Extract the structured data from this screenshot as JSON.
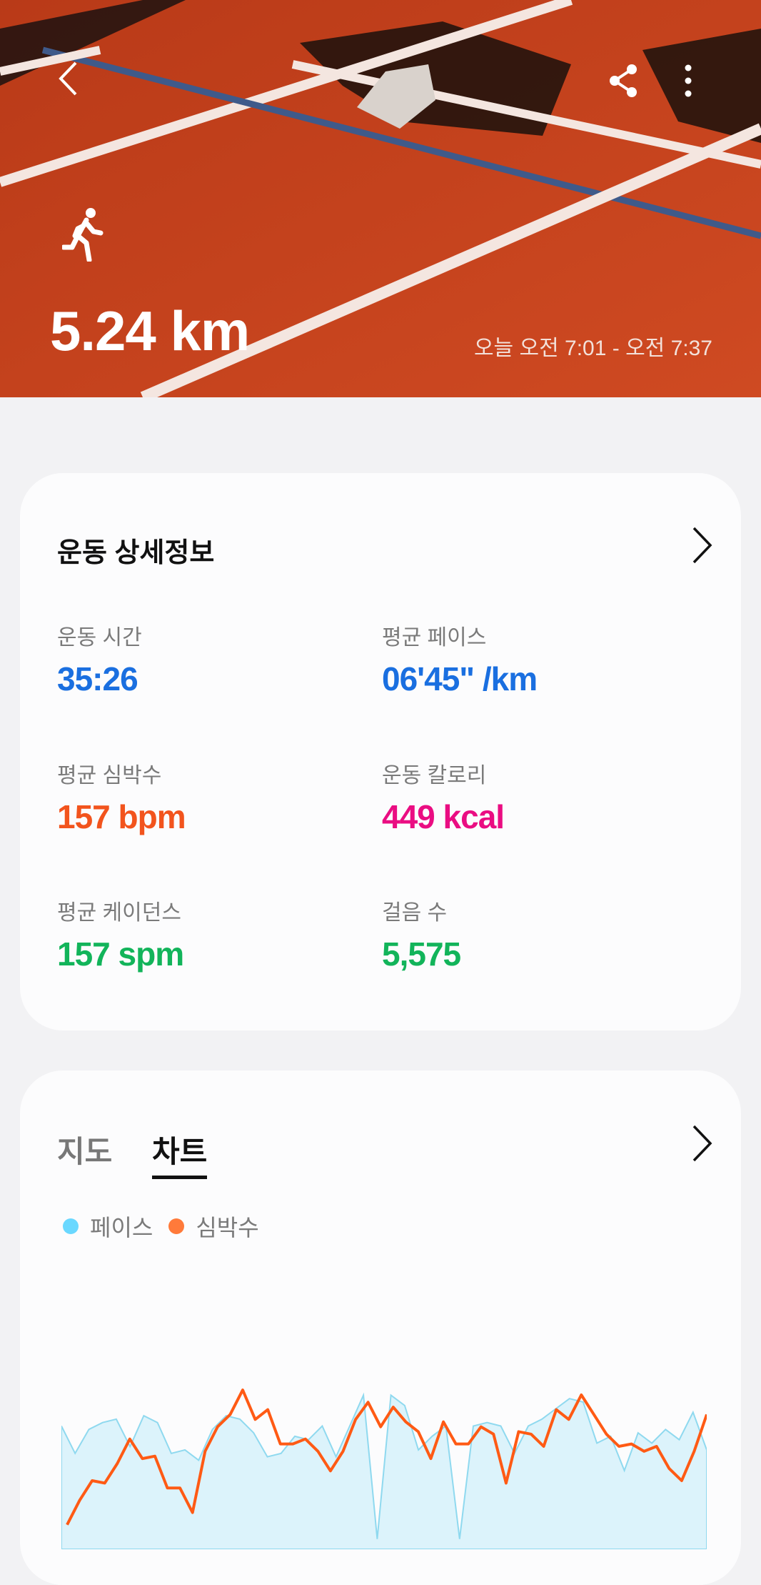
{
  "header": {
    "activity_icon": "running-icon",
    "distance": "5.24 km",
    "time_range": "오늘 오전 7:01 - 오전 7:37",
    "icons": [
      "back-icon",
      "share-icon",
      "more-vertical-icon"
    ]
  },
  "details": {
    "title": "운동 상세정보",
    "stats": [
      {
        "label": "운동 시간",
        "value": "35:26",
        "color": "#1a6fe0"
      },
      {
        "label": "평균 페이스",
        "value": "06'45\" /km",
        "color": "#1a6fe0"
      },
      {
        "label": "평균 심박수",
        "value": "157 bpm",
        "color": "#f2541d"
      },
      {
        "label": "운동 칼로리",
        "value": "449 kcal",
        "color": "#ea0d82"
      },
      {
        "label": "평균 케이던스",
        "value": "157 spm",
        "color": "#12b45a"
      },
      {
        "label": "걸음 수",
        "value": "5,575",
        "color": "#12b45a"
      }
    ]
  },
  "chart_card": {
    "tabs": [
      {
        "label": "지도",
        "active": false
      },
      {
        "label": "차트",
        "active": true
      }
    ],
    "legend": [
      {
        "label": "페이스",
        "color": "#6ad8ff"
      },
      {
        "label": "심박수",
        "color": "#ff7a3a"
      }
    ]
  },
  "chart_data": {
    "type": "line",
    "grid": false,
    "series": [
      {
        "name": "페이스",
        "color": "#8fd9ef",
        "fill": "#dcf3fb",
        "values": [
          6.0,
          6.8,
          6.1,
          5.9,
          5.8,
          6.6,
          5.7,
          5.9,
          6.8,
          6.7,
          7.0,
          6.1,
          5.7,
          5.8,
          6.2,
          6.9,
          6.8,
          6.3,
          6.4,
          6.0,
          6.9,
          6.0,
          5.1,
          9.3,
          5.1,
          5.4,
          6.7,
          6.3,
          6.0,
          9.3,
          6.0,
          5.9,
          6.0,
          6.8,
          6.0,
          5.8,
          5.5,
          5.2,
          5.3,
          6.5,
          6.3,
          7.3,
          6.2,
          6.5,
          6.1,
          6.4,
          5.6,
          6.7
        ]
      },
      {
        "name": "심박수",
        "color": "#ff5a14",
        "values": [
          125,
          135,
          143,
          142,
          150,
          160,
          152,
          153,
          140,
          140,
          130,
          155,
          165,
          170,
          180,
          168,
          172,
          158,
          158,
          160,
          155,
          147,
          155,
          168,
          175,
          165,
          173,
          167,
          163,
          152,
          167,
          158,
          158,
          165,
          162,
          142,
          163,
          162,
          157,
          172,
          168,
          178,
          170,
          162,
          157,
          158,
          155,
          157,
          148,
          143,
          155,
          170
        ]
      }
    ]
  }
}
